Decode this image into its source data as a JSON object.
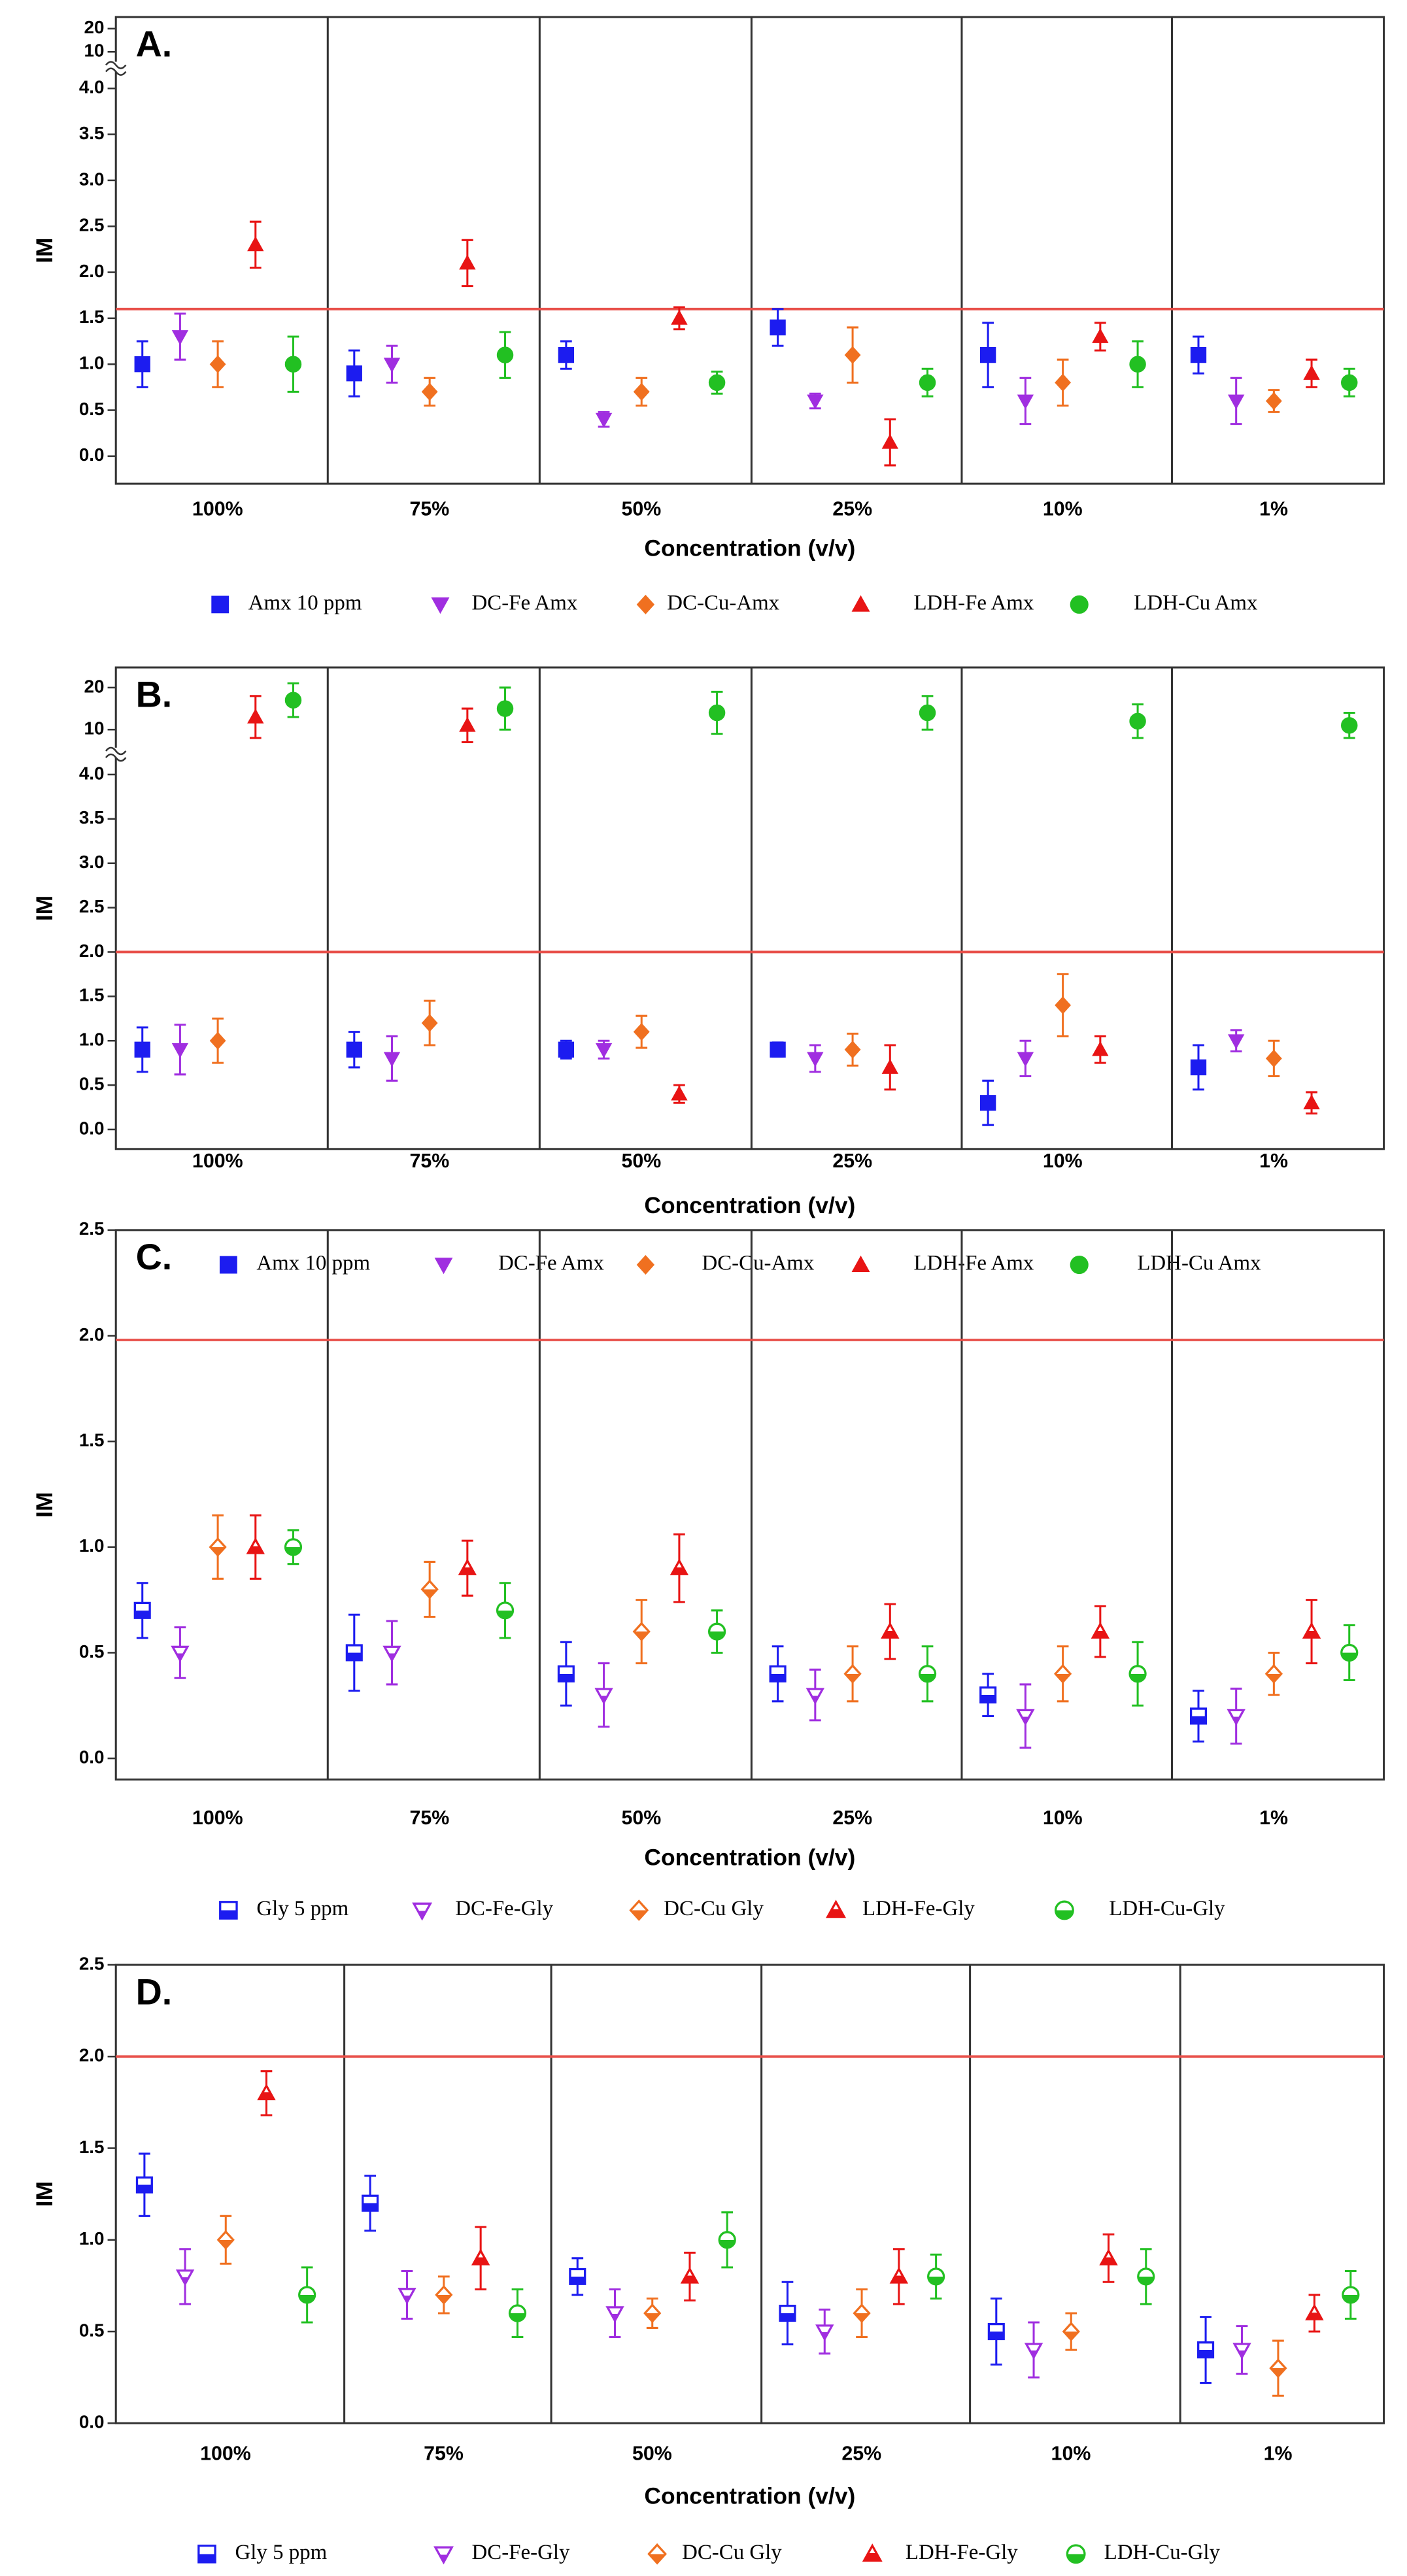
{
  "chart_data": [
    {
      "type": "scatter",
      "panel_label": "A.",
      "ylabel": "IM",
      "xlabel": "Concentration (v/v)",
      "categories": [
        "100%",
        "75%",
        "50%",
        "25%",
        "10%",
        "1%"
      ],
      "ylim": [
        -0.3,
        4.2
      ],
      "yticks": [
        {
          "value": 0,
          "label": "0.0"
        },
        0.5,
        {
          "value": 1,
          "label": "1.0"
        },
        1.5,
        {
          "value": 2,
          "label": "2.0"
        },
        2.5,
        {
          "value": 3,
          "label": "3.0"
        },
        3.5,
        {
          "value": 4,
          "label": "4.0"
        }
      ],
      "y_break": {
        "ylim": [
          5,
          25
        ],
        "yticks": [
          10,
          20
        ]
      },
      "reference_line": {
        "value": 1.6,
        "color": "#e8504a"
      },
      "marker_fill": "solid",
      "series": [
        {
          "name": "Amx 10 ppm",
          "color": "#1c1cf0",
          "marker": "square",
          "values": [
            1.0,
            0.9,
            1.1,
            1.4,
            1.1,
            1.1
          ],
          "errors": [
            0.25,
            0.25,
            0.15,
            0.2,
            0.35,
            0.2
          ]
        },
        {
          "name": "DC-Fe Amx",
          "color": "#a02ee0",
          "marker": "triangle-down",
          "values": [
            1.3,
            1.0,
            0.4,
            0.6,
            0.6,
            0.6
          ],
          "errors": [
            0.25,
            0.2,
            0.08,
            0.08,
            0.25,
            0.25
          ]
        },
        {
          "name": "DC-Cu-Amx",
          "color": "#f07020",
          "marker": "diamond",
          "values": [
            1.0,
            0.7,
            0.7,
            1.1,
            0.8,
            0.6
          ],
          "errors": [
            0.25,
            0.15,
            0.15,
            0.3,
            0.25,
            0.12
          ]
        },
        {
          "name": "LDH-Fe Amx",
          "color": "#e81414",
          "marker": "triangle-up",
          "values": [
            2.3,
            2.1,
            1.5,
            0.15,
            1.3,
            0.9
          ],
          "errors": [
            0.25,
            0.25,
            0.12,
            0.25,
            0.15,
            0.15
          ]
        },
        {
          "name": "LDH-Cu Amx",
          "color": "#22c022",
          "marker": "circle",
          "values": [
            1.0,
            1.1,
            0.8,
            0.8,
            1.0,
            0.8
          ],
          "errors": [
            0.3,
            0.25,
            0.12,
            0.15,
            0.25,
            0.15
          ]
        }
      ]
    },
    {
      "type": "scatter",
      "panel_label": "B.",
      "ylabel": "IM",
      "xlabel": "Concentration (v/v)",
      "categories": [
        "100%",
        "75%",
        "50%",
        "25%",
        "10%",
        "1%"
      ],
      "ylim": [
        -0.22,
        4.2
      ],
      "yticks": [
        {
          "value": 0,
          "label": "0.0"
        },
        0.5,
        {
          "value": 1,
          "label": "1.0"
        },
        1.5,
        {
          "value": 2,
          "label": "2.0"
        },
        2.5,
        {
          "value": 3,
          "label": "3.0"
        },
        3.5,
        {
          "value": 4,
          "label": "4.0"
        }
      ],
      "y_break": {
        "ylim": [
          5.5,
          24.8
        ],
        "yticks": [
          10,
          20
        ]
      },
      "reference_line": {
        "value": 2.0,
        "color": "#e8504a"
      },
      "marker_fill": "solid",
      "series": [
        {
          "name": "Amx 10 ppm",
          "color": "#1c1cf0",
          "marker": "square",
          "values": [
            0.9,
            0.9,
            0.9,
            0.9,
            0.3,
            0.7
          ],
          "errors": [
            0.25,
            0.2,
            0.1,
            0.08,
            0.25,
            0.25
          ]
        },
        {
          "name": "DC-Fe Amx",
          "color": "#a02ee0",
          "marker": "triangle-down",
          "values": [
            0.9,
            0.8,
            0.9,
            0.8,
            0.8,
            1.0
          ],
          "errors": [
            0.28,
            0.25,
            0.1,
            0.15,
            0.2,
            0.12
          ]
        },
        {
          "name": "DC-Cu-Amx",
          "color": "#f07020",
          "marker": "diamond",
          "values": [
            1.0,
            1.2,
            1.1,
            0.9,
            1.4,
            0.8
          ],
          "errors": [
            0.25,
            0.25,
            0.18,
            0.18,
            0.35,
            0.2
          ]
        },
        {
          "name": "LDH-Fe Amx",
          "color": "#e81414",
          "marker": "triangle-up",
          "values": [
            13,
            11,
            0.4,
            0.7,
            0.9,
            0.3
          ],
          "errors": [
            5,
            4,
            0.1,
            0.25,
            0.15,
            0.12
          ]
        },
        {
          "name": "LDH-Cu Amx",
          "color": "#22c022",
          "marker": "circle",
          "values": [
            17,
            15,
            14,
            14,
            12,
            11
          ],
          "errors": [
            4,
            5,
            5,
            4,
            4,
            3
          ]
        }
      ]
    },
    {
      "type": "scatter",
      "panel_label": "C.",
      "ylabel": "IM",
      "xlabel": "Concentration (v/v)",
      "categories": [
        "100%",
        "75%",
        "50%",
        "25%",
        "10%",
        "1%"
      ],
      "ylim": [
        -0.1,
        2.5
      ],
      "yticks": [
        {
          "value": 0,
          "label": "0.0"
        },
        0.5,
        {
          "value": 1,
          "label": "1.0"
        },
        1.5,
        {
          "value": 2,
          "label": "2.0"
        },
        2.5
      ],
      "reference_line": {
        "value": 1.98,
        "color": "#e8504a"
      },
      "marker_fill": "half",
      "series": [
        {
          "name": "Gly 5 ppm",
          "color": "#1c1cf0",
          "marker": "square",
          "values": [
            0.7,
            0.5,
            0.4,
            0.4,
            0.3,
            0.2
          ],
          "errors": [
            0.13,
            0.18,
            0.15,
            0.13,
            0.1,
            0.12
          ]
        },
        {
          "name": "DC-Fe-Gly",
          "color": "#a02ee0",
          "marker": "triangle-down",
          "values": [
            0.5,
            0.5,
            0.3,
            0.3,
            0.2,
            0.2
          ],
          "errors": [
            0.12,
            0.15,
            0.15,
            0.12,
            0.15,
            0.13
          ]
        },
        {
          "name": "DC-Cu Gly",
          "color": "#f07020",
          "marker": "diamond",
          "values": [
            1.0,
            0.8,
            0.6,
            0.4,
            0.4,
            0.4
          ],
          "errors": [
            0.15,
            0.13,
            0.15,
            0.13,
            0.13,
            0.1
          ]
        },
        {
          "name": "LDH-Fe-Gly",
          "color": "#e81414",
          "marker": "triangle-up",
          "values": [
            1.0,
            0.9,
            0.9,
            0.6,
            0.6,
            0.6
          ],
          "errors": [
            0.15,
            0.13,
            0.16,
            0.13,
            0.12,
            0.15
          ]
        },
        {
          "name": "LDH-Cu-Gly",
          "color": "#22c022",
          "marker": "circle",
          "values": [
            1.0,
            0.7,
            0.6,
            0.4,
            0.4,
            0.5
          ],
          "errors": [
            0.08,
            0.13,
            0.1,
            0.13,
            0.15,
            0.13
          ]
        }
      ]
    },
    {
      "type": "scatter",
      "panel_label": "D.",
      "ylabel": "IM",
      "xlabel": "Concentration (v/v)",
      "categories": [
        "100%",
        "75%",
        "50%",
        "25%",
        "10%",
        "1%"
      ],
      "ylim": [
        0,
        2.5
      ],
      "yticks": [
        {
          "value": 0,
          "label": "0.0"
        },
        0.5,
        {
          "value": 1,
          "label": "1.0"
        },
        1.5,
        {
          "value": 2,
          "label": "2.0"
        },
        2.5
      ],
      "reference_line": {
        "value": 2.0,
        "color": "#e8504a"
      },
      "marker_fill": "half",
      "series": [
        {
          "name": "Gly 5 ppm",
          "color": "#1c1cf0",
          "marker": "square",
          "values": [
            1.3,
            1.2,
            0.8,
            0.6,
            0.5,
            0.4
          ],
          "errors": [
            0.17,
            0.15,
            0.1,
            0.17,
            0.18,
            0.18
          ]
        },
        {
          "name": "DC-Fe-Gly",
          "color": "#a02ee0",
          "marker": "triangle-down",
          "values": [
            0.8,
            0.7,
            0.6,
            0.5,
            0.4,
            0.4
          ],
          "errors": [
            0.15,
            0.13,
            0.13,
            0.12,
            0.15,
            0.13
          ]
        },
        {
          "name": "DC-Cu Gly",
          "color": "#f07020",
          "marker": "diamond",
          "values": [
            1.0,
            0.7,
            0.6,
            0.6,
            0.5,
            0.3
          ],
          "errors": [
            0.13,
            0.1,
            0.08,
            0.13,
            0.1,
            0.15
          ]
        },
        {
          "name": "LDH-Fe-Gly",
          "color": "#e81414",
          "marker": "triangle-up",
          "values": [
            1.8,
            0.9,
            0.8,
            0.8,
            0.9,
            0.6
          ],
          "errors": [
            0.12,
            0.17,
            0.13,
            0.15,
            0.13,
            0.1
          ]
        },
        {
          "name": "LDH-Cu-Gly",
          "color": "#22c022",
          "marker": "circle",
          "values": [
            0.7,
            0.6,
            1.0,
            0.8,
            0.8,
            0.7
          ],
          "errors": [
            0.15,
            0.13,
            0.15,
            0.12,
            0.15,
            0.13
          ]
        }
      ]
    }
  ]
}
